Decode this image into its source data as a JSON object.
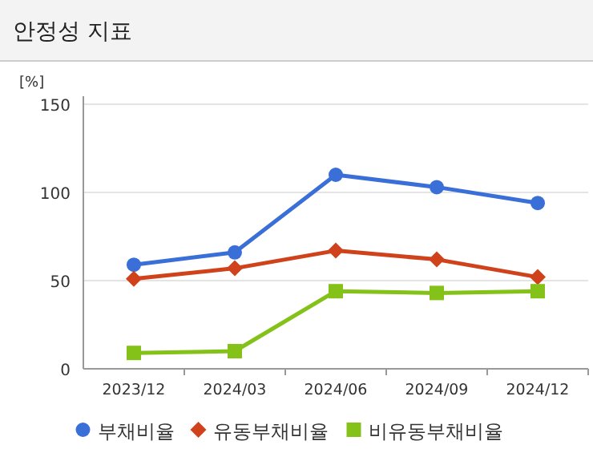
{
  "chart_data": {
    "type": "line",
    "title": "안정성 지표",
    "ylabel": "[%]",
    "categories": [
      "2023/12",
      "2024/03",
      "2024/06",
      "2024/09",
      "2024/12"
    ],
    "series": [
      {
        "name": "부채비율",
        "color": "#3a6fd8",
        "marker": "circle",
        "values": [
          59,
          66,
          110,
          103,
          94
        ]
      },
      {
        "name": "유동부채비율",
        "color": "#d0421b",
        "marker": "diamond",
        "values": [
          51,
          57,
          67,
          62,
          52
        ]
      },
      {
        "name": "비유동부채비율",
        "color": "#84c21a",
        "marker": "square",
        "values": [
          9,
          10,
          44,
          43,
          44
        ]
      }
    ],
    "ylim": [
      0,
      150
    ],
    "yticks": [
      0,
      50,
      100,
      150
    ],
    "grid": "y",
    "legend": "bottom",
    "line_style": "solid"
  }
}
